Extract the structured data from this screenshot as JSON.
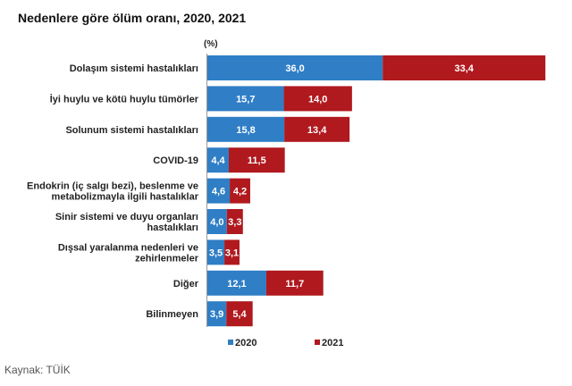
{
  "chart_data": {
    "type": "bar",
    "orientation": "horizontal",
    "stacked": true,
    "title": "Nedenlere göre ölüm oranı, 2020, 2021",
    "unit": "(%)",
    "categories": [
      [
        "Dolaşım sistemi hastalıkları"
      ],
      [
        "İyi huylu ve kötü huylu tümörler"
      ],
      [
        "Solunum sistemi hastalıkları"
      ],
      [
        "COVID-19"
      ],
      [
        "Endokrin (iç salgı bezi), beslenme ve",
        "metabolizmayla ilgili hastalıklar"
      ],
      [
        "Sinir sistemi ve duyu organları",
        "hastalıkları"
      ],
      [
        "Dışsal yaralanma nedenleri ve",
        "zehirlenmeler"
      ],
      [
        "Diğer"
      ],
      [
        "Bilinmeyen"
      ]
    ],
    "series": [
      {
        "name": "2020",
        "color": "#2f7ec6",
        "values": [
          36.0,
          15.7,
          15.8,
          4.4,
          4.6,
          4.0,
          3.5,
          12.1,
          3.9
        ],
        "labels": [
          "36,0",
          "15,7",
          "15,8",
          "4,4",
          "4,6",
          "4,0",
          "3,5",
          "12,1",
          "3,9"
        ]
      },
      {
        "name": "2021",
        "color": "#b0191e",
        "values": [
          33.4,
          14.0,
          13.4,
          11.5,
          4.2,
          3.3,
          3.1,
          11.7,
          5.4
        ],
        "labels": [
          "33,4",
          "14,0",
          "13,4",
          "11,5",
          "4,2",
          "3,3",
          "3,1",
          "11,7",
          "5,4"
        ]
      }
    ],
    "legend": "bottom",
    "grid": false
  },
  "source": "Kaynak: TÜİK"
}
